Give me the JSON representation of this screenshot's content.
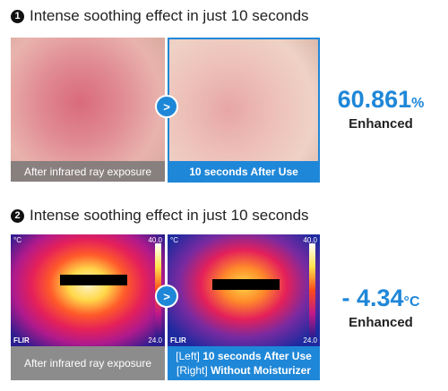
{
  "sections": [
    {
      "number": "1",
      "heading": "Intense soothing effect in just 10 seconds",
      "left_caption": "After infrared ray exposure",
      "right_caption": "10 seconds After Use",
      "stat_value": "60.861",
      "stat_unit": "%",
      "stat_label": "Enhanced"
    },
    {
      "number": "2",
      "heading": "Intense soothing effect in just 10 seconds",
      "thermal_labels": {
        "unit": "°C",
        "max": "40.0",
        "min": "24.0",
        "brand": "FLIR"
      },
      "left_caption": "After infrared ray exposure",
      "right_caption_lines": [
        [
          "[Left]",
          "10 seconds After Use"
        ],
        [
          "[Right]",
          "Without Moisturizer"
        ]
      ],
      "stat_value": "- 4.34",
      "stat_unit": "°C",
      "stat_label": "Enhanced"
    }
  ]
}
